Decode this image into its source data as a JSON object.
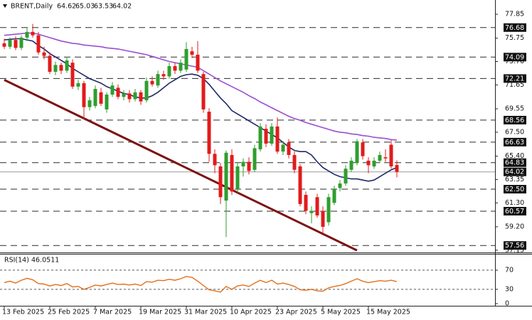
{
  "chart_data": {
    "type": "candlestick",
    "title": "BRENT,Daily",
    "categories": [
      "13 Feb 2025",
      null,
      null,
      null,
      null,
      null,
      null,
      null,
      "25 Feb 2025",
      null,
      null,
      null,
      null,
      null,
      null,
      null,
      "7 Mar 2025",
      null,
      null,
      null,
      null,
      null,
      null,
      null,
      "19 Mar 2025",
      null,
      null,
      null,
      null,
      null,
      null,
      null,
      "31 Mar 2025",
      null,
      null,
      null,
      null,
      null,
      null,
      null,
      "10 Apr 2025",
      null,
      null,
      null,
      null,
      null,
      null,
      null,
      "23 Apr 2025",
      null,
      null,
      null,
      null,
      null,
      null,
      null,
      "5 May 2025",
      null,
      null,
      null,
      null,
      null,
      null,
      null,
      "15 May 2025",
      null,
      null,
      null,
      null,
      null
    ],
    "open": [
      75.3,
      75.0,
      75.6,
      74.9,
      75.8,
      76.3,
      76.0,
      74.5,
      74.2,
      72.8,
      73.4,
      72.9,
      73.6,
      71.5,
      71.8,
      69.7,
      69.8,
      71.0,
      69.5,
      70.8,
      71.4,
      70.6,
      70.9,
      70.4,
      71.0,
      70.3,
      72.0,
      71.6,
      72.6,
      72.4,
      73.3,
      72.9,
      73.0,
      74.6,
      74.3,
      72.6,
      69.3,
      65.6,
      64.5,
      61.5,
      65.5,
      62.5,
      64.5,
      64.9,
      64.2,
      66.0,
      67.8,
      66.5,
      68.0,
      65.8,
      66.6,
      65.5,
      64.5,
      62.0,
      60.4,
      61.8,
      60.6,
      59.6,
      61.3,
      62.6,
      63.0,
      64.2,
      64.8,
      66.6,
      65.0,
      64.5,
      65.0,
      65.3,
      66.4,
      64.62
    ],
    "high": [
      75.7,
      75.8,
      75.9,
      76.0,
      76.7,
      77.0,
      76.3,
      75.0,
      74.5,
      73.7,
      73.6,
      74.1,
      73.9,
      72.1,
      72.0,
      70.6,
      71.6,
      71.4,
      71.0,
      71.9,
      71.7,
      71.2,
      71.2,
      71.3,
      71.2,
      72.3,
      72.4,
      72.9,
      72.9,
      73.6,
      73.6,
      73.9,
      75.4,
      75.0,
      75.5,
      72.8,
      69.6,
      66.0,
      64.8,
      65.9,
      66.0,
      64.8,
      65.2,
      65.3,
      66.4,
      68.3,
      68.2,
      68.3,
      68.8,
      66.7,
      66.9,
      65.8,
      64.7,
      62.3,
      61.0,
      62.1,
      61.0,
      62.1,
      62.8,
      63.3,
      64.6,
      65.3,
      66.9,
      66.9,
      65.3,
      65.3,
      65.8,
      66.0,
      66.8,
      65.03
    ],
    "low": [
      74.8,
      74.8,
      74.7,
      74.7,
      75.5,
      75.8,
      74.3,
      73.9,
      72.6,
      72.5,
      72.6,
      72.7,
      71.3,
      71.2,
      68.6,
      69.4,
      69.6,
      69.8,
      69.2,
      70.6,
      70.4,
      70.3,
      70.1,
      70.2,
      69.9,
      70.1,
      71.5,
      71.4,
      72.1,
      72.2,
      72.6,
      72.7,
      72.8,
      74.0,
      72.7,
      69.2,
      64.9,
      63.9,
      61.2,
      58.3,
      62.0,
      62.2,
      63.6,
      63.8,
      64.0,
      65.8,
      66.2,
      66.3,
      65.6,
      65.5,
      65.2,
      63.9,
      61.0,
      60.3,
      59.5,
      60.0,
      58.6,
      59.3,
      61.1,
      62.3,
      62.8,
      64.0,
      64.6,
      65.1,
      63.9,
      64.3,
      64.8,
      64.9,
      64.3,
      63.53
    ],
    "close": [
      75.0,
      75.6,
      74.9,
      75.8,
      76.3,
      76.0,
      74.5,
      74.2,
      72.8,
      73.4,
      72.9,
      73.8,
      71.5,
      71.8,
      69.7,
      70.3,
      71.3,
      70.0,
      70.8,
      71.6,
      70.6,
      70.9,
      70.4,
      71.0,
      70.2,
      72.0,
      71.7,
      72.6,
      72.4,
      73.3,
      72.9,
      73.6,
      74.8,
      74.3,
      72.9,
      69.5,
      65.6,
      64.6,
      61.8,
      65.7,
      62.3,
      64.5,
      64.9,
      64.1,
      66.1,
      68.0,
      66.5,
      68.0,
      65.8,
      66.4,
      65.5,
      64.2,
      61.2,
      60.6,
      60.6,
      60.2,
      59.2,
      61.8,
      62.5,
      63.0,
      64.3,
      65.0,
      66.7,
      65.4,
      64.6,
      65.0,
      65.5,
      65.2,
      64.5,
      64.02
    ],
    "colors": {
      "up": "#2e9e2e",
      "down": "#e21b1b"
    },
    "overlays": [
      {
        "color": "#1f2a66",
        "values": [
          75.6,
          75.65,
          75.7,
          75.7,
          75.6,
          75.5,
          75.1,
          74.8,
          74.4,
          74.1,
          73.8,
          73.5,
          73.1,
          72.8,
          72.5,
          72.2,
          72.0,
          71.8,
          71.5,
          71.3,
          71.1,
          70.9,
          70.8,
          70.6,
          70.5,
          70.5,
          70.7,
          71.0,
          71.4,
          71.8,
          72.1,
          72.4,
          72.55,
          72.6,
          72.5,
          72.2,
          71.7,
          71.1,
          70.5,
          70.0,
          69.4,
          69.1,
          68.8,
          68.5,
          68.2,
          67.9,
          67.6,
          67.3,
          67.0,
          66.6,
          66.2,
          65.9,
          65.8,
          65.8,
          65.5,
          64.9,
          64.4,
          64.1,
          63.8,
          63.6,
          63.5,
          63.4,
          63.4,
          63.3,
          63.2,
          63.3,
          63.6,
          63.9,
          64.2,
          64.4
        ]
      },
      {
        "color": "#9a4fd0",
        "values": [
          76.0,
          76.05,
          76.1,
          76.15,
          76.2,
          76.2,
          76.1,
          75.95,
          75.8,
          75.65,
          75.5,
          75.4,
          75.3,
          75.25,
          75.15,
          75.1,
          75.05,
          75.0,
          74.9,
          74.85,
          74.8,
          74.7,
          74.6,
          74.5,
          74.4,
          74.3,
          74.15,
          74.0,
          73.85,
          73.7,
          73.6,
          73.5,
          73.4,
          73.3,
          73.2,
          72.9,
          72.6,
          72.3,
          72.0,
          71.75,
          71.5,
          71.25,
          71.0,
          70.7,
          70.45,
          70.15,
          69.9,
          69.65,
          69.4,
          69.15,
          68.9,
          68.7,
          68.55,
          68.35,
          68.2,
          68.05,
          67.9,
          67.75,
          67.6,
          67.5,
          67.45,
          67.35,
          67.3,
          67.2,
          67.15,
          67.05,
          67.0,
          66.95,
          66.85,
          66.8
        ]
      }
    ],
    "trendline": {
      "color": "#7d1212",
      "x": [
        0,
        62
      ],
      "values": [
        72.09,
        57.13
      ]
    },
    "levels": [
      76.68,
      74.09,
      72.21,
      68.56,
      66.63,
      64.83,
      {
        "value": 62.5,
        "label": "62.50"
      },
      60.57,
      57.56
    ],
    "ylim": [
      56.95,
      79.1
    ],
    "yticks": [
      77.85,
      75.75,
      {
        "value": 73.7,
        "label": "73.70"
      },
      71.65,
      69.55,
      {
        "value": 67.5,
        "label": "67.50"
      },
      {
        "value": 65.4,
        "label": "65.40"
      },
      63.35,
      {
        "value": 61.3,
        "label": "61.30"
      },
      {
        "value": 59.2,
        "label": "59.20"
      },
      57.15
    ],
    "rsi": {
      "title": "RSI(14)",
      "color": "#e0701c",
      "values": [
        44,
        47,
        43,
        49,
        53,
        50,
        42,
        41,
        37,
        40,
        38,
        42,
        35,
        36,
        30,
        34,
        39,
        37,
        40,
        43,
        40,
        41,
        39,
        41,
        38,
        46,
        45,
        49,
        48,
        51,
        49,
        52,
        57,
        55,
        47,
        38,
        29,
        27,
        24,
        36,
        30,
        37,
        39,
        36,
        43,
        49,
        44,
        49,
        41,
        43,
        40,
        36,
        29,
        28,
        30,
        27,
        26,
        33,
        36,
        38,
        42,
        47,
        52,
        47,
        44,
        46,
        48,
        47,
        49,
        46.0511
      ],
      "ylim": [
        -4.4,
        102.6
      ],
      "yticks": [
        70,
        30,
        0
      ],
      "levels": [
        70,
        30
      ]
    }
  }
}
